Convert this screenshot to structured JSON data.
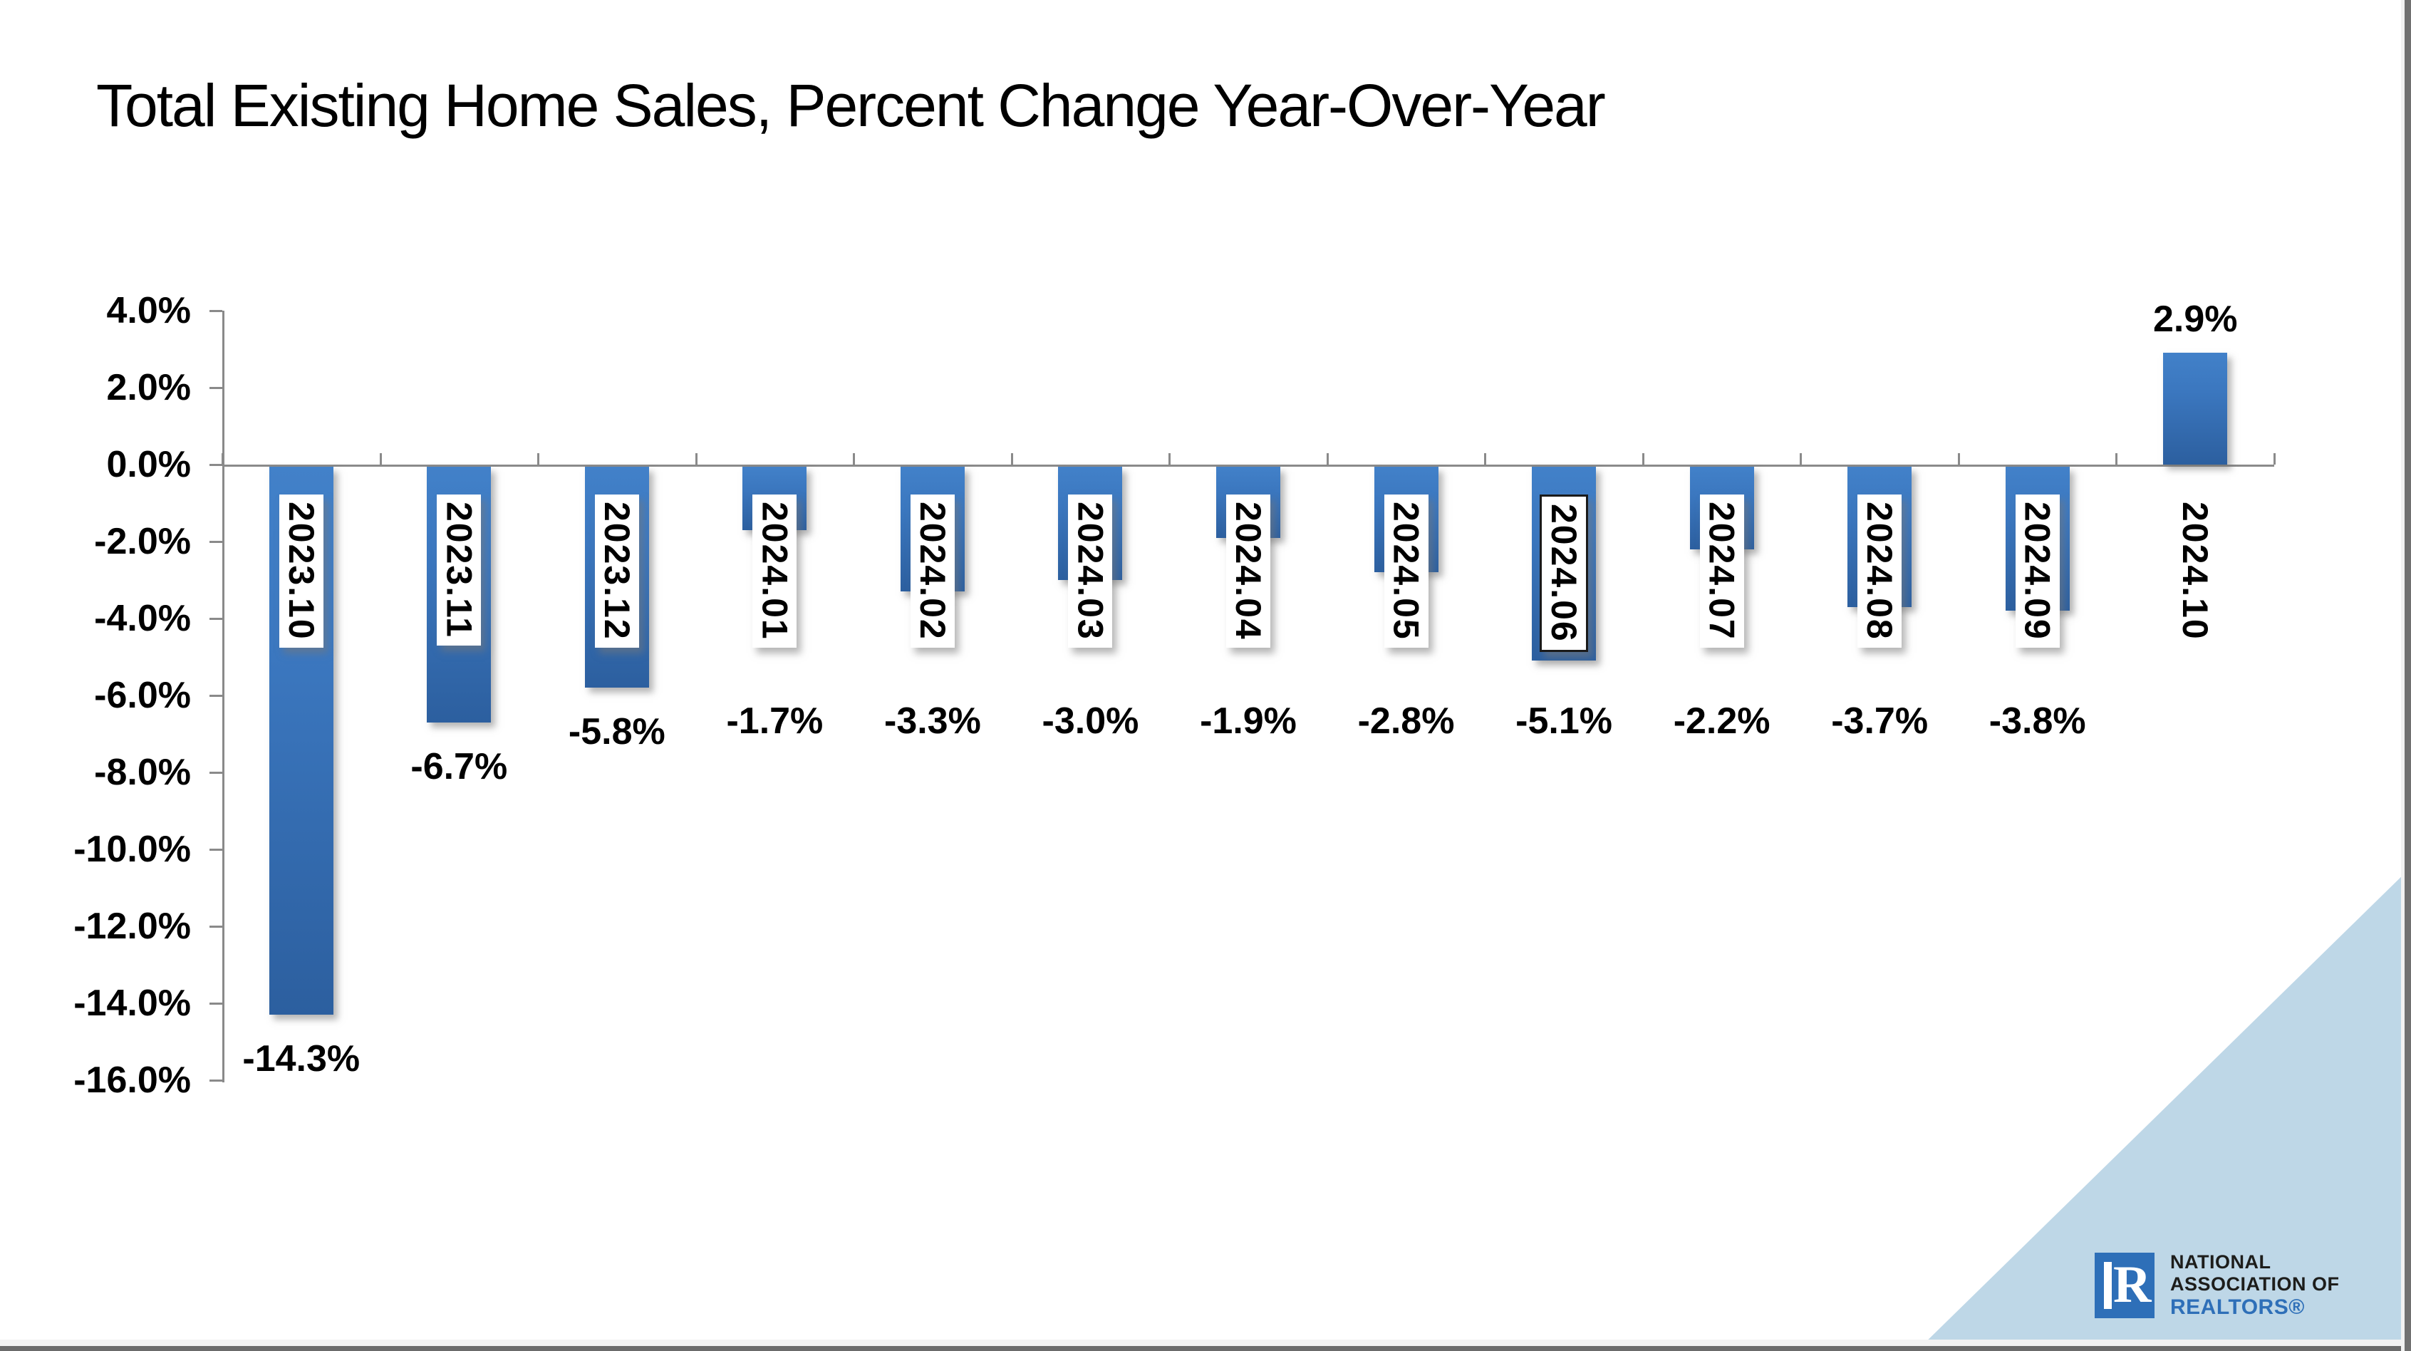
{
  "title": "Total Existing Home Sales, Percent Change Year-Over-Year",
  "colors": {
    "bar_top": "#4281c9",
    "bar_bottom": "#2c5f9f",
    "axis": "#8a8a8a",
    "triangle": "#bed7e7",
    "logo_blue": "#2e6fb8",
    "logo_dark": "#1d1d1b"
  },
  "chart_data": {
    "type": "bar",
    "title": "Total Existing Home Sales, Percent Change Year-Over-Year",
    "categories": [
      "2023.10",
      "2023.11",
      "2023.12",
      "2024.01",
      "2024.02",
      "2024.03",
      "2024.04",
      "2024.05",
      "2024.06",
      "2024.07",
      "2024.08",
      "2024.09",
      "2024.10"
    ],
    "values": [
      -14.3,
      -6.7,
      -5.8,
      -1.7,
      -3.3,
      -3.0,
      -1.9,
      -2.8,
      -5.1,
      -2.2,
      -3.7,
      -3.8,
      2.9
    ],
    "value_labels": [
      "-14.3%",
      "-6.7%",
      "-5.8%",
      "-1.7%",
      "-3.3%",
      "-3.0%",
      "-1.9%",
      "-2.8%",
      "-5.1%",
      "-2.2%",
      "-3.7%",
      "-3.8%",
      "2.9%"
    ],
    "y_tick_labels": [
      "4.0%",
      "2.0%",
      "0.0%",
      "-2.0%",
      "-4.0%",
      "-6.0%",
      "-8.0%",
      "-10.0%",
      "-12.0%",
      "-14.0%",
      "-16.0%"
    ],
    "y_ticks": [
      4,
      2,
      0,
      -2,
      -4,
      -6,
      -8,
      -10,
      -12,
      -14,
      -16
    ],
    "ylim": [
      -16,
      4
    ],
    "xlabel": "",
    "ylabel": "",
    "grid": false,
    "legend": false,
    "category_labels_rotated": true,
    "boxed_category": "2024.06"
  },
  "logo": {
    "mark": "R",
    "line1": "NATIONAL",
    "line2": "ASSOCIATION OF",
    "line3": "REALTORS®"
  }
}
